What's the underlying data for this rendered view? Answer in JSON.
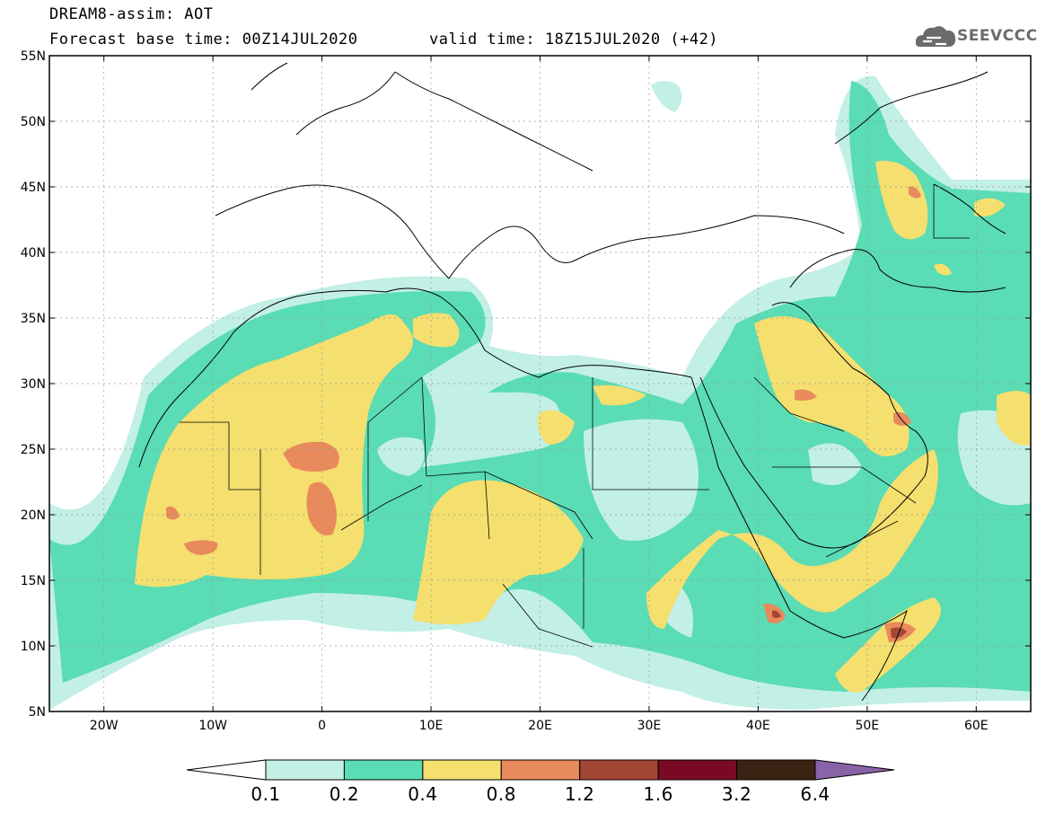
{
  "header": {
    "title": "DREAM8-assim: AOT",
    "base_time": "Forecast base time: 00Z14JUL2020",
    "valid_time": "valid time: 18Z15JUL2020 (+42)"
  },
  "logo": {
    "text": "SEEVCCC",
    "icon": "cloud-logo-icon"
  },
  "map": {
    "lat_labels": [
      "55N",
      "50N",
      "45N",
      "40N",
      "35N",
      "30N",
      "25N",
      "20N",
      "15N",
      "10N",
      "5N"
    ],
    "lon_labels": [
      "20W",
      "10W",
      "0",
      "10E",
      "20E",
      "30E",
      "40E",
      "50E",
      "60E"
    ],
    "lon_range": [
      -25,
      65
    ],
    "lat_range": [
      5,
      55
    ],
    "grid": true
  },
  "colorbar": {
    "labels": [
      "0.1",
      "0.2",
      "0.4",
      "0.8",
      "1.2",
      "1.6",
      "3.2",
      "6.4"
    ],
    "colors": [
      "#ffffff",
      "#c2efe6",
      "#5adcb4",
      "#f5df6e",
      "#e88a5c",
      "#a44636",
      "#7a0a24",
      "#3c2212",
      "#8a62a8"
    ]
  }
}
